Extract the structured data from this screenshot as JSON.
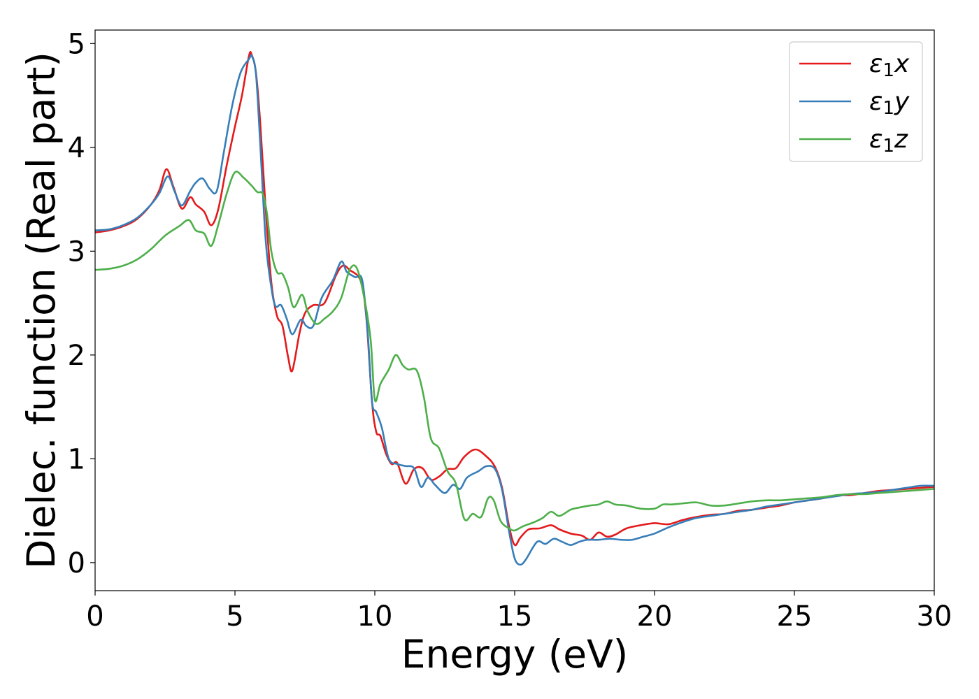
{
  "chart_data": {
    "type": "line",
    "title": "",
    "xlabel": "Energy (eV)",
    "ylabel": "Dielec. function (Real part)",
    "xlim": [
      0,
      30
    ],
    "ylim": [
      -0.27,
      5.13
    ],
    "xticks": [
      0,
      5,
      10,
      15,
      20,
      25,
      30
    ],
    "xtick_labels": [
      "0",
      "5",
      "10",
      "15",
      "20",
      "25",
      "30"
    ],
    "yticks": [
      0,
      1,
      2,
      3,
      4,
      5
    ],
    "ytick_labels": [
      "0",
      "1",
      "2",
      "3",
      "4",
      "5"
    ],
    "grid": false,
    "legend_position": "top-right",
    "series": [
      {
        "name": "ε₁x",
        "legend_main": "ε",
        "legend_sub": "1",
        "legend_suffix": "x",
        "color": "#e41a1c",
        "x": [
          0,
          0.5,
          1,
          1.5,
          2,
          2.3,
          2.55,
          2.8,
          3.1,
          3.4,
          3.6,
          3.9,
          4.15,
          4.4,
          4.7,
          5,
          5.25,
          5.5,
          5.6,
          5.75,
          5.9,
          6.1,
          6.3,
          6.5,
          6.7,
          6.9,
          7.05,
          7.3,
          7.5,
          7.8,
          8.2,
          8.6,
          8.85,
          9.1,
          9.5,
          9.7,
          9.9,
          10.05,
          10.2,
          10.4,
          10.6,
          10.8,
          11.1,
          11.4,
          11.7,
          12,
          12.3,
          12.6,
          12.9,
          13.2,
          13.6,
          14,
          14.3,
          14.55,
          14.8,
          15,
          15.2,
          15.5,
          15.9,
          16.3,
          16.6,
          17,
          17.4,
          17.7,
          18,
          18.3,
          18.6,
          19,
          19.5,
          20,
          20.5,
          21,
          21.5,
          22,
          22.5,
          23,
          23.5,
          24,
          24.5,
          25,
          25.5,
          26,
          26.5,
          27,
          27.5,
          28,
          28.5,
          29,
          29.5,
          30
        ],
        "y": [
          3.18,
          3.2,
          3.24,
          3.31,
          3.45,
          3.59,
          3.79,
          3.62,
          3.41,
          3.52,
          3.45,
          3.38,
          3.25,
          3.4,
          3.82,
          4.2,
          4.5,
          4.88,
          4.89,
          4.72,
          4.25,
          3.4,
          2.7,
          2.38,
          2.28,
          1.98,
          1.85,
          2.2,
          2.4,
          2.48,
          2.5,
          2.76,
          2.86,
          2.82,
          2.71,
          2.35,
          1.55,
          1.26,
          1.22,
          1.05,
          0.95,
          0.96,
          0.76,
          0.9,
          0.91,
          0.8,
          0.83,
          0.9,
          0.91,
          1.02,
          1.09,
          1.02,
          0.92,
          0.72,
          0.35,
          0.17,
          0.24,
          0.32,
          0.33,
          0.36,
          0.32,
          0.28,
          0.26,
          0.22,
          0.29,
          0.25,
          0.27,
          0.33,
          0.36,
          0.38,
          0.37,
          0.41,
          0.44,
          0.46,
          0.47,
          0.5,
          0.51,
          0.53,
          0.55,
          0.58,
          0.6,
          0.62,
          0.65,
          0.65,
          0.67,
          0.69,
          0.7,
          0.71,
          0.72,
          0.73
        ]
      },
      {
        "name": "ε₁y",
        "legend_main": "ε",
        "legend_sub": "1",
        "legend_suffix": "y",
        "color": "#377eb8",
        "x": [
          0,
          0.5,
          1,
          1.5,
          2,
          2.3,
          2.6,
          2.85,
          3.1,
          3.4,
          3.6,
          3.85,
          4.1,
          4.35,
          4.6,
          4.9,
          5.2,
          5.5,
          5.6,
          5.75,
          5.9,
          6.1,
          6.3,
          6.45,
          6.65,
          6.85,
          7.05,
          7.35,
          7.55,
          7.8,
          8.1,
          8.5,
          8.8,
          9,
          9.3,
          9.55,
          9.75,
          9.9,
          10.05,
          10.25,
          10.5,
          10.8,
          11.1,
          11.4,
          11.65,
          11.9,
          12.15,
          12.5,
          12.8,
          13.05,
          13.3,
          13.7,
          14,
          14.3,
          14.55,
          14.8,
          15,
          15.2,
          15.4,
          15.8,
          16.1,
          16.4,
          16.7,
          17,
          17.3,
          17.6,
          18,
          18.4,
          18.8,
          19.2,
          19.6,
          20,
          20.5,
          21,
          21.5,
          22,
          22.5,
          23,
          23.5,
          24,
          24.5,
          25,
          25.5,
          26,
          26.5,
          27,
          27.5,
          28,
          28.5,
          29,
          29.5,
          30
        ],
        "y": [
          3.2,
          3.21,
          3.25,
          3.32,
          3.45,
          3.56,
          3.72,
          3.57,
          3.44,
          3.58,
          3.66,
          3.7,
          3.6,
          3.58,
          3.95,
          4.4,
          4.72,
          4.85,
          4.88,
          4.71,
          4.05,
          3.1,
          2.65,
          2.47,
          2.48,
          2.35,
          2.2,
          2.34,
          2.28,
          2.28,
          2.55,
          2.72,
          2.9,
          2.8,
          2.75,
          2.72,
          2.2,
          1.55,
          1.45,
          1.3,
          1.0,
          0.95,
          0.93,
          0.91,
          0.73,
          0.82,
          0.75,
          0.67,
          0.75,
          0.71,
          0.82,
          0.88,
          0.93,
          0.9,
          0.7,
          0.3,
          0.04,
          -0.02,
          0.03,
          0.2,
          0.18,
          0.23,
          0.2,
          0.17,
          0.2,
          0.22,
          0.22,
          0.23,
          0.22,
          0.22,
          0.25,
          0.28,
          0.34,
          0.39,
          0.43,
          0.45,
          0.47,
          0.49,
          0.51,
          0.54,
          0.56,
          0.58,
          0.6,
          0.62,
          0.64,
          0.66,
          0.67,
          0.68,
          0.7,
          0.72,
          0.74,
          0.74
        ]
      },
      {
        "name": "ε₁z",
        "legend_main": "ε",
        "legend_sub": "1",
        "legend_suffix": "z",
        "color": "#4daf4a",
        "x": [
          0,
          0.5,
          1,
          1.5,
          2,
          2.5,
          3,
          3.35,
          3.6,
          3.9,
          4.15,
          4.4,
          4.7,
          5,
          5.3,
          5.6,
          5.8,
          6,
          6.15,
          6.3,
          6.5,
          6.7,
          6.9,
          7.1,
          7.4,
          7.6,
          7.9,
          8.2,
          8.5,
          8.8,
          9.1,
          9.35,
          9.6,
          9.85,
          10,
          10.2,
          10.5,
          10.75,
          11,
          11.2,
          11.5,
          11.75,
          12,
          12.3,
          12.6,
          12.9,
          13.2,
          13.5,
          13.8,
          14.05,
          14.25,
          14.5,
          14.8,
          15,
          15.3,
          15.7,
          16,
          16.3,
          16.6,
          17,
          17.3,
          17.7,
          18,
          18.3,
          18.6,
          19,
          19.5,
          20,
          20.3,
          20.6,
          21,
          21.5,
          22,
          22.5,
          23,
          23.5,
          24,
          24.5,
          25,
          25.5,
          26,
          26.5,
          27,
          27.5,
          28,
          28.5,
          29,
          29.5,
          30
        ],
        "y": [
          2.82,
          2.83,
          2.86,
          2.92,
          3.02,
          3.15,
          3.24,
          3.3,
          3.2,
          3.17,
          3.05,
          3.25,
          3.55,
          3.76,
          3.71,
          3.63,
          3.57,
          3.55,
          3.35,
          3.0,
          2.8,
          2.78,
          2.65,
          2.46,
          2.58,
          2.42,
          2.3,
          2.35,
          2.42,
          2.55,
          2.82,
          2.84,
          2.58,
          2.15,
          1.57,
          1.72,
          1.86,
          2.0,
          1.9,
          1.86,
          1.85,
          1.6,
          1.2,
          1.1,
          0.88,
          0.76,
          0.42,
          0.47,
          0.44,
          0.62,
          0.6,
          0.4,
          0.33,
          0.31,
          0.35,
          0.39,
          0.43,
          0.49,
          0.45,
          0.51,
          0.53,
          0.55,
          0.56,
          0.59,
          0.56,
          0.55,
          0.52,
          0.52,
          0.56,
          0.56,
          0.57,
          0.58,
          0.55,
          0.55,
          0.57,
          0.59,
          0.6,
          0.6,
          0.61,
          0.62,
          0.63,
          0.65,
          0.66,
          0.66,
          0.67,
          0.68,
          0.69,
          0.7,
          0.71
        ]
      }
    ]
  }
}
